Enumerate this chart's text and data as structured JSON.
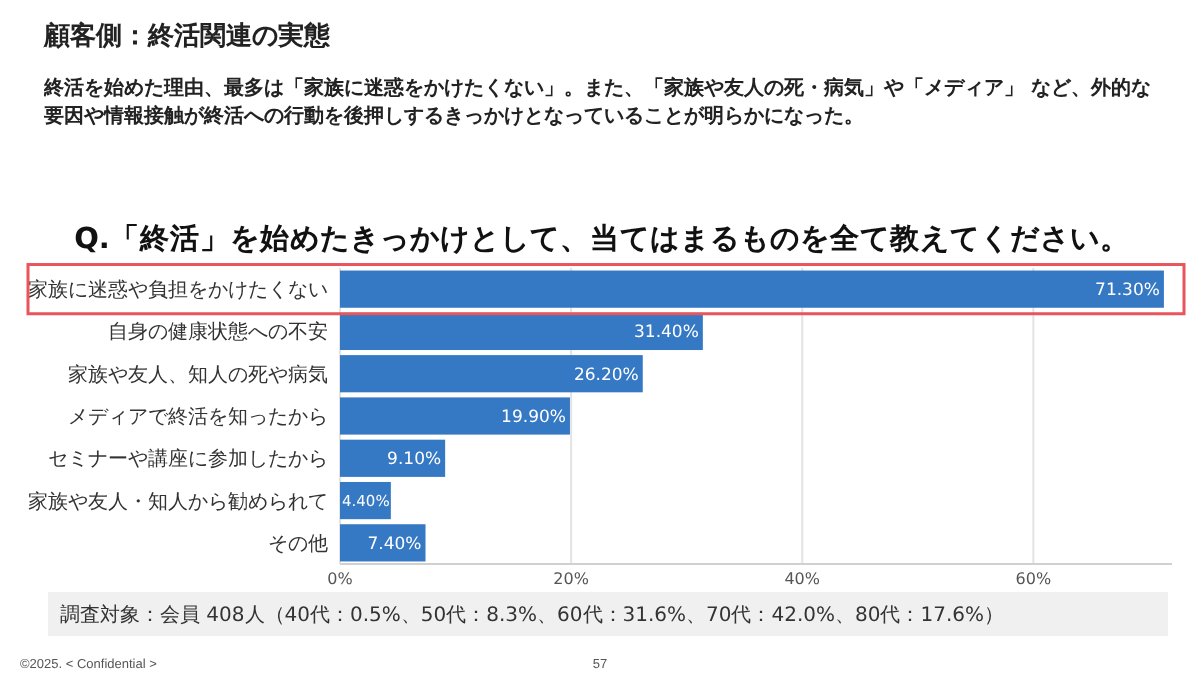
{
  "chart_data": {
    "type": "bar",
    "orientation": "horizontal",
    "title": "Q.「終活」を始めたきっかけとして、当てはまるものを全て教えてください。",
    "categories": [
      "家族に迷惑や負担をかけたくない",
      "自身の健康状態への不安",
      "家族や友人、知人の死や病気",
      "メディアで終活を知ったから",
      "セミナーや講座に参加したから",
      "家族や友人・知人から勧められて",
      "その他"
    ],
    "values": [
      71.3,
      31.4,
      26.2,
      19.9,
      9.1,
      4.4,
      7.4
    ],
    "value_labels": [
      "71.30%",
      "31.40%",
      "26.20%",
      "19.90%",
      "9.10%",
      "4.40%",
      "7.40%"
    ],
    "color": "#3578c4",
    "xlim": [
      0,
      72
    ],
    "xticks": [
      {
        "value": 0,
        "label": "0%"
      },
      {
        "value": 20,
        "label": "20%"
      },
      {
        "value": 40,
        "label": "40%"
      },
      {
        "value": 60,
        "label": "60%"
      }
    ],
    "grid": "x",
    "annotations": [
      "顧客側：終活関連の実態",
      "終活を始めた理由、最多は「家族に迷惑をかけたくない」。また、「家族や友人の死・病気」や「メディア」 など、外的な要因や情報接触が終活への行動を後押しするきっかけとなっていることが明らかになった。",
      "調査対象：会員 408人（40代：0.5%、50代：8.3%、60代：31.6%、70代：42.0%、80代：17.6%）",
      "©2025. < Confidential >",
      "57"
    ]
  }
}
